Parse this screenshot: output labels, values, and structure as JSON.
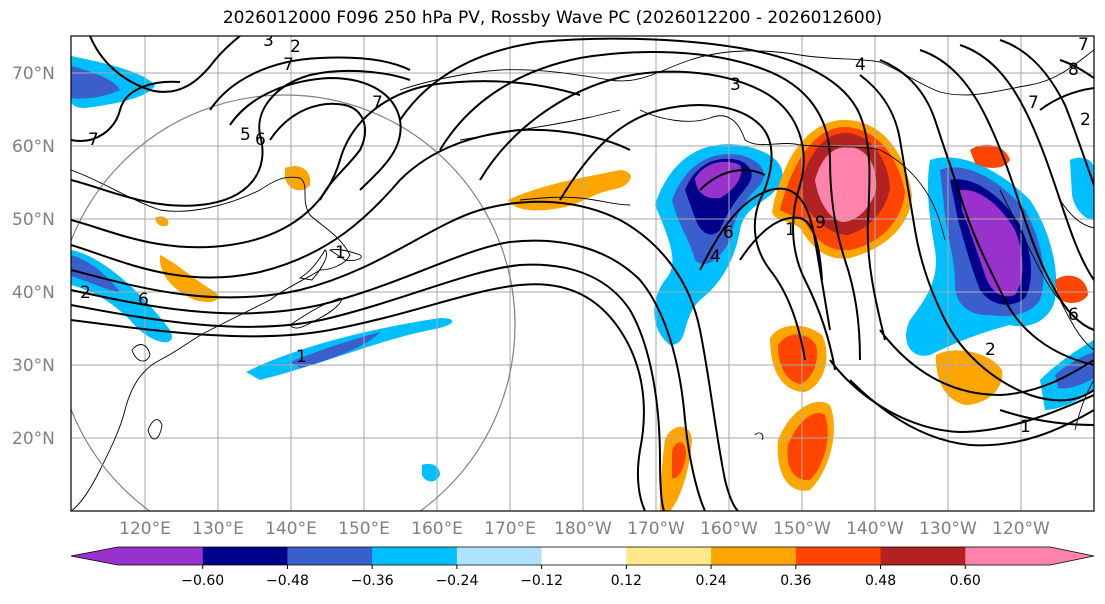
{
  "title": "2026012000 F096 250 hPa PV, Rossby Wave PC (2026012200 - 2026012600)",
  "lat_labels": [
    "70°N",
    "60°N",
    "50°N",
    "40°N",
    "30°N",
    "20°N"
  ],
  "lon_labels": [
    "120°E",
    "130°E",
    "140°E",
    "150°E",
    "160°E",
    "170°E",
    "180°W",
    "170°W",
    "160°W",
    "150°W",
    "140°W",
    "130°W",
    "120°W"
  ],
  "colorbar": {
    "colors": [
      "#9932cc",
      "#00008b",
      "#3a5fcd",
      "#00bfff",
      "#b0e2ff",
      "#ffffff",
      "#ffe88a",
      "#ffa500",
      "#ff4500",
      "#b22222",
      "#ff83aa"
    ],
    "tick_labels": [
      "−0.60",
      "−0.48",
      "−0.36",
      "−0.24",
      "−0.12",
      "0.12",
      "0.24",
      "0.36",
      "0.48",
      "0.60"
    ]
  },
  "contour_labels": [
    "3",
    "2",
    "7",
    "5",
    "6",
    "7",
    "3",
    "4",
    "7",
    "8",
    "7",
    "2",
    "6",
    "9",
    "4",
    "1",
    "1",
    "7",
    "2",
    "1",
    "6",
    "2",
    "1",
    "6"
  ],
  "colors": {
    "gridline": "#a9a9a9",
    "contour": "#000000",
    "circle": "#808080",
    "coast": "#000000"
  }
}
